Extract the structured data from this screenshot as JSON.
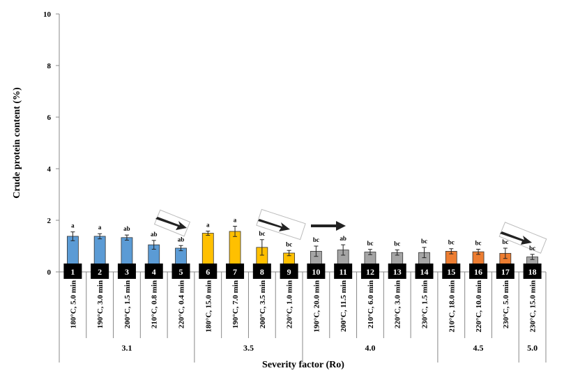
{
  "chart_data": {
    "type": "bar",
    "ylabel": "Crude protein content (%)",
    "xlabel": "Severity factor (Ro)",
    "categories": [
      "180°C, 5.0 min",
      "190°C, 3.0 min",
      "200°C, 1.5 min",
      "210°C, 0.8 min",
      "220°C, 0.4 min",
      "180°C, 15.0 min",
      "190°C, 7.0 min",
      "200°C, 3.5 min",
      "220°C, 1.0 min",
      "190°C, 20.0 min",
      "200°C, 11.5 min",
      "210°C, 6.0 min",
      "220°C, 3.0 min",
      "230°C, 1.5 min",
      "210°C, 18.0 min",
      "220°C, 10.0 min",
      "230°C, 5.0 min",
      "230°C, 15.0 min"
    ],
    "numbers": [
      "1",
      "2",
      "3",
      "4",
      "5",
      "6",
      "7",
      "8",
      "9",
      "10",
      "11",
      "12",
      "13",
      "14",
      "15",
      "16",
      "17",
      "18"
    ],
    "category_groups": [
      "3.1",
      "3.1",
      "3.1",
      "3.1",
      "3.1",
      "3.5",
      "3.5",
      "3.5",
      "3.5",
      "4.0",
      "4.0",
      "4.0",
      "4.0",
      "4.0",
      "4.5",
      "4.5",
      "4.5",
      "5.0"
    ],
    "values": [
      1.38,
      1.38,
      1.33,
      1.05,
      0.92,
      1.5,
      1.57,
      0.95,
      0.73,
      0.8,
      0.85,
      0.77,
      0.75,
      0.75,
      0.8,
      0.78,
      0.72,
      0.58
    ],
    "errors": [
      0.17,
      0.1,
      0.1,
      0.17,
      0.1,
      0.08,
      0.2,
      0.3,
      0.1,
      0.2,
      0.2,
      0.1,
      0.1,
      0.2,
      0.1,
      0.1,
      0.2,
      0.1
    ],
    "value_labels": [
      "a",
      "a",
      "ab",
      "ab",
      "ab",
      "a",
      "a",
      "bc",
      "bc",
      "bc",
      "ab",
      "bc",
      "bc",
      "bc",
      "bc",
      "bc",
      "bc",
      "bc"
    ],
    "colors": [
      "#5b9bd5",
      "#5b9bd5",
      "#5b9bd5",
      "#5b9bd5",
      "#5b9bd5",
      "#ffc000",
      "#ffc000",
      "#ffc000",
      "#ffc000",
      "#a5a5a5",
      "#a5a5a5",
      "#a5a5a5",
      "#a5a5a5",
      "#a5a5a5",
      "#ed7d31",
      "#ed7d31",
      "#ed7d31",
      "#a5a5a5"
    ],
    "ylim": [
      0,
      10
    ],
    "yticks": [
      0,
      2,
      4,
      6,
      8,
      10
    ],
    "grid": false
  }
}
